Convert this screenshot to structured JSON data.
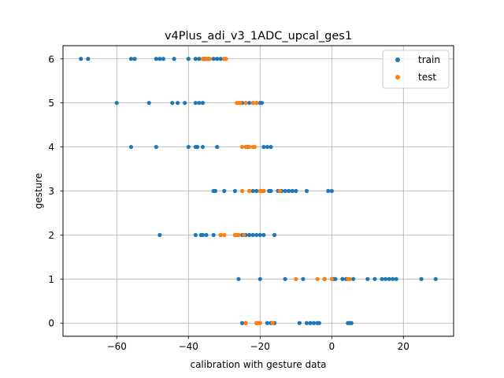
{
  "chart_data": {
    "type": "scatter",
    "title": "v4Plus_adi_v3_1ADC_upcal_ges1",
    "xlabel": "calibration with gesture data",
    "ylabel": "gesture",
    "xlim": [
      -75,
      34
    ],
    "ylim": [
      -0.3,
      6.3
    ],
    "xticks": [
      -60,
      -40,
      -20,
      0,
      20
    ],
    "xtick_labels": [
      "−60",
      "−40",
      "−20",
      "0",
      "20"
    ],
    "yticks": [
      0,
      1,
      2,
      3,
      4,
      5,
      6
    ],
    "ytick_labels": [
      "0",
      "1",
      "2",
      "3",
      "4",
      "5",
      "6"
    ],
    "grid": true,
    "legend_position": "top-right",
    "series": [
      {
        "name": "train",
        "color": "#1f77b4",
        "points": [
          [
            -70,
            6
          ],
          [
            -68,
            6
          ],
          [
            -56,
            6
          ],
          [
            -55,
            6
          ],
          [
            -49,
            6
          ],
          [
            -48,
            6
          ],
          [
            -47,
            6
          ],
          [
            -44,
            6
          ],
          [
            -40,
            6
          ],
          [
            -38,
            6
          ],
          [
            -37,
            6
          ],
          [
            -36,
            6
          ],
          [
            -35.5,
            6
          ],
          [
            -35,
            6
          ],
          [
            -34.5,
            6
          ],
          [
            -33,
            6
          ],
          [
            -32,
            6
          ],
          [
            -31,
            6
          ],
          [
            -30,
            6
          ],
          [
            -60,
            5
          ],
          [
            -51,
            5
          ],
          [
            -44.5,
            5
          ],
          [
            -43,
            5
          ],
          [
            -41,
            5
          ],
          [
            -38,
            5
          ],
          [
            -37,
            5
          ],
          [
            -36,
            5
          ],
          [
            -25,
            5
          ],
          [
            -24,
            5
          ],
          [
            -23,
            5
          ],
          [
            -22,
            5
          ],
          [
            -21,
            5
          ],
          [
            -20,
            5
          ],
          [
            -19.5,
            5
          ],
          [
            -56,
            4
          ],
          [
            -49,
            4
          ],
          [
            -40,
            4
          ],
          [
            -38,
            4
          ],
          [
            -37.5,
            4
          ],
          [
            -36,
            4
          ],
          [
            -32,
            4
          ],
          [
            -23.5,
            4
          ],
          [
            -19,
            4
          ],
          [
            -18,
            4
          ],
          [
            -17,
            4
          ],
          [
            -33,
            3
          ],
          [
            -32.5,
            3
          ],
          [
            -30,
            3
          ],
          [
            -27,
            3
          ],
          [
            -23,
            3
          ],
          [
            -22,
            3
          ],
          [
            -21,
            3
          ],
          [
            -19,
            3
          ],
          [
            -17.5,
            3
          ],
          [
            -17,
            3
          ],
          [
            -15,
            3
          ],
          [
            -14,
            3
          ],
          [
            -13,
            3
          ],
          [
            -12,
            3
          ],
          [
            -11,
            3
          ],
          [
            -10,
            3
          ],
          [
            -7,
            3
          ],
          [
            -1,
            3
          ],
          [
            0,
            3
          ],
          [
            -48,
            2
          ],
          [
            -38,
            2
          ],
          [
            -36.5,
            2
          ],
          [
            -36,
            2
          ],
          [
            -35,
            2
          ],
          [
            -33,
            2
          ],
          [
            -31,
            2
          ],
          [
            -27,
            2
          ],
          [
            -25,
            2
          ],
          [
            -24,
            2
          ],
          [
            -23,
            2
          ],
          [
            -22,
            2
          ],
          [
            -21,
            2
          ],
          [
            -20,
            2
          ],
          [
            -19,
            2
          ],
          [
            -16,
            2
          ],
          [
            -26,
            1
          ],
          [
            -20,
            1
          ],
          [
            -13,
            1
          ],
          [
            -8,
            1
          ],
          [
            -2,
            1
          ],
          [
            0.5,
            1
          ],
          [
            1,
            1
          ],
          [
            3,
            1
          ],
          [
            4,
            1
          ],
          [
            6,
            1
          ],
          [
            10,
            1
          ],
          [
            12,
            1
          ],
          [
            14,
            1
          ],
          [
            15,
            1
          ],
          [
            16,
            1
          ],
          [
            17,
            1
          ],
          [
            18,
            1
          ],
          [
            25,
            1
          ],
          [
            29,
            1
          ],
          [
            -25,
            0
          ],
          [
            -24,
            0
          ],
          [
            -21,
            0
          ],
          [
            -18,
            0
          ],
          [
            -17,
            0
          ],
          [
            -16,
            0
          ],
          [
            -9,
            0
          ],
          [
            -7,
            0
          ],
          [
            -6,
            0
          ],
          [
            -5,
            0
          ],
          [
            -4,
            0
          ],
          [
            -3.5,
            0
          ],
          [
            4.5,
            0
          ],
          [
            5,
            0
          ],
          [
            5.5,
            0
          ]
        ]
      },
      {
        "name": "test",
        "color": "#ff7f0e",
        "points": [
          [
            -36,
            6
          ],
          [
            -35,
            6
          ],
          [
            -34,
            6
          ],
          [
            -30,
            6
          ],
          [
            -29.5,
            6
          ],
          [
            -26.5,
            5
          ],
          [
            -26,
            5
          ],
          [
            -25.5,
            5
          ],
          [
            -24,
            5
          ],
          [
            -22,
            5
          ],
          [
            -21,
            5
          ],
          [
            -25,
            4
          ],
          [
            -24,
            4
          ],
          [
            -23,
            4
          ],
          [
            -22,
            4
          ],
          [
            -21.5,
            4
          ],
          [
            -25,
            3
          ],
          [
            -23,
            3
          ],
          [
            -20,
            3
          ],
          [
            -19.5,
            3
          ],
          [
            -19,
            3
          ],
          [
            -14.5,
            3
          ],
          [
            -31,
            2
          ],
          [
            -30,
            2
          ],
          [
            -27,
            2
          ],
          [
            -26.5,
            2
          ],
          [
            -26,
            2
          ],
          [
            -24.5,
            2
          ],
          [
            -10,
            1
          ],
          [
            -4,
            1
          ],
          [
            -2,
            1
          ],
          [
            0,
            1
          ],
          [
            4.5,
            1
          ],
          [
            5,
            1
          ],
          [
            -24,
            0
          ],
          [
            -21,
            0
          ],
          [
            -20.5,
            0
          ],
          [
            -20,
            0
          ],
          [
            -16.5,
            0
          ]
        ]
      }
    ]
  }
}
